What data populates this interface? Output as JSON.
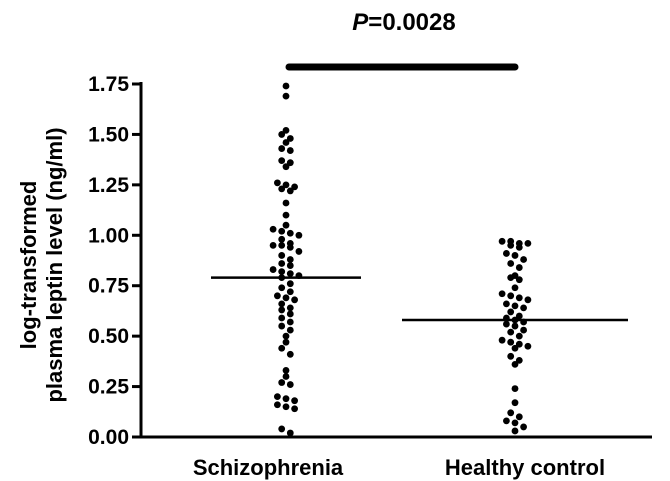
{
  "chart_data": {
    "type": "scatter",
    "subtype": "dot-plot with mean lines",
    "title": "",
    "ylabel_lines": [
      "log-transformed",
      "plasma leptin level (ng/ml)"
    ],
    "ylim": [
      0,
      1.75
    ],
    "yticks": [
      "0.00",
      "0.25",
      "0.50",
      "0.75",
      "1.00",
      "1.25",
      "1.50",
      "1.75"
    ],
    "yticks_values": [
      0,
      0.25,
      0.5,
      0.75,
      1.0,
      1.25,
      1.5,
      1.75
    ],
    "categories": [
      "Schizophrenia",
      "Healthy control"
    ],
    "significance": {
      "italic": "P",
      "text": "=0.0028",
      "between": [
        "Schizophrenia",
        "Healthy control"
      ]
    },
    "series": [
      {
        "category": "Schizophrenia",
        "mean": 0.79,
        "values": [
          1.74,
          1.69,
          1.52,
          1.5,
          1.48,
          1.46,
          1.43,
          1.42,
          1.37,
          1.36,
          1.34,
          1.26,
          1.25,
          1.24,
          1.23,
          1.22,
          1.16,
          1.1,
          1.05,
          1.03,
          1.02,
          1.01,
          1.0,
          0.98,
          0.96,
          0.95,
          0.95,
          0.94,
          0.92,
          0.9,
          0.88,
          0.86,
          0.85,
          0.83,
          0.82,
          0.81,
          0.8,
          0.79,
          0.76,
          0.74,
          0.72,
          0.7,
          0.69,
          0.68,
          0.66,
          0.64,
          0.63,
          0.61,
          0.59,
          0.57,
          0.55,
          0.53,
          0.5,
          0.47,
          0.44,
          0.41,
          0.33,
          0.3,
          0.27,
          0.26,
          0.2,
          0.19,
          0.18,
          0.16,
          0.15,
          0.14,
          0.04,
          0.02
        ]
      },
      {
        "category": "Healthy control",
        "mean": 0.58,
        "values": [
          0.97,
          0.97,
          0.96,
          0.96,
          0.95,
          0.94,
          0.91,
          0.9,
          0.88,
          0.86,
          0.84,
          0.8,
          0.79,
          0.78,
          0.74,
          0.71,
          0.7,
          0.69,
          0.68,
          0.66,
          0.65,
          0.64,
          0.62,
          0.6,
          0.59,
          0.58,
          0.57,
          0.56,
          0.55,
          0.53,
          0.52,
          0.5,
          0.48,
          0.47,
          0.46,
          0.45,
          0.44,
          0.4,
          0.38,
          0.36,
          0.24,
          0.17,
          0.12,
          0.1,
          0.08,
          0.07,
          0.05,
          0.03
        ]
      }
    ],
    "grid": false
  }
}
